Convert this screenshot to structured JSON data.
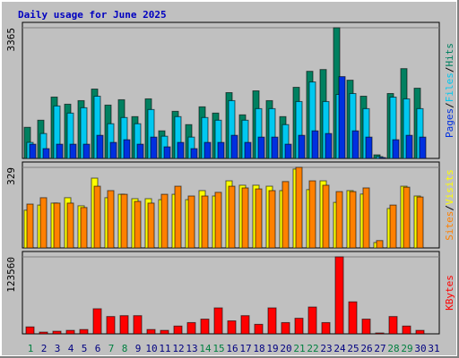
{
  "chart_data": {
    "type": "bar",
    "title": "Daily usage for June 2025",
    "separator": "/",
    "categories": [
      "1",
      "2",
      "3",
      "4",
      "5",
      "6",
      "7",
      "8",
      "9",
      "10",
      "11",
      "12",
      "13",
      "14",
      "15",
      "16",
      "17",
      "18",
      "19",
      "20",
      "21",
      "22",
      "23",
      "24",
      "25",
      "26",
      "27",
      "28",
      "29",
      "30",
      "31"
    ],
    "category_colors": [
      "#008040",
      "#000080",
      "#000080",
      "#000080",
      "#000080",
      "#000080",
      "#008040",
      "#008040",
      "#000080",
      "#000080",
      "#000080",
      "#000080",
      "#000080",
      "#008040",
      "#008040",
      "#000080",
      "#000080",
      "#000080",
      "#000080",
      "#000080",
      "#008040",
      "#008040",
      "#000080",
      "#000080",
      "#000080",
      "#000080",
      "#000080",
      "#008040",
      "#008040",
      "#000080",
      "#000080"
    ],
    "panels": [
      {
        "ylim": [
          0,
          3365
        ],
        "yticks": [
          3365
        ],
        "series": [
          {
            "name": "Hits",
            "color": "#008060",
            "values": [
              801,
              984,
              1580,
              1396,
              1488,
              1786,
              1373,
              1511,
              1076,
              1534,
              710,
              1213,
              870,
              1328,
              1167,
              1694,
              1122,
              1740,
              1488,
              1076,
              1831,
              2243,
              2289,
              3365,
              2014,
              1602,
              92,
              1671,
              2312,
              1808,
              null
            ]
          },
          {
            "name": "Files",
            "color": "#00c8f0",
            "values": [
              412,
              641,
              1351,
              1167,
              1305,
              1602,
              893,
              1053,
              893,
              1259,
              572,
              1076,
              549,
              1053,
              984,
              1488,
              984,
              1282,
              1282,
              870,
              1465,
              1969,
              1465,
              1648,
              1671,
              1282,
              46,
              1579,
              1534,
              1282,
              null
            ]
          },
          {
            "name": "Pages",
            "color": "#0030e0",
            "values": [
              366,
              252,
              366,
              366,
              366,
              595,
              412,
              481,
              366,
              549,
              298,
              412,
              252,
              412,
              412,
              595,
              412,
              549,
              549,
              366,
              595,
              710,
              641,
              2106,
              710,
              549,
              23,
              481,
              595,
              549,
              null
            ]
          }
        ]
      },
      {
        "ylim": [
          0,
          329
        ],
        "yticks": [
          329
        ],
        "series": [
          {
            "name": "Visits",
            "color": "#ffff00",
            "values": [
              154,
              175,
              183,
              205,
              172,
              285,
              205,
              219,
              201,
              201,
              197,
              219,
              197,
              234,
              212,
              274,
              256,
              256,
              252,
              234,
              322,
              238,
              274,
              186,
              234,
              220,
              22,
              161,
              252,
              212,
              null
            ]
          },
          {
            "name": "Sites",
            "color": "#ff8000",
            "values": [
              179,
              205,
              183,
              183,
              165,
              252,
              234,
              219,
              190,
              183,
              219,
              252,
              212,
              212,
              227,
              252,
              245,
              241,
              234,
              271,
              329,
              274,
              256,
              230,
              230,
              245,
              30,
              175,
              248,
              208,
              null
            ]
          }
        ]
      },
      {
        "ylim": [
          0,
          123560
        ],
        "yticks": [
          123560
        ],
        "series": [
          {
            "name": "KBytes",
            "color": "#ff0000",
            "values": [
              11104,
              2776,
              4164,
              5552,
              6940,
              40252,
              27760,
              29148,
              29148,
              6940,
              5552,
              12492,
              18044,
              23596,
              41640,
              20820,
              29148,
              15268,
              41640,
              18044,
              24984,
              43028,
              18044,
              123560,
              51356,
              23596,
              1388,
              27760,
              12492,
              5552,
              null
            ]
          }
        ]
      }
    ]
  }
}
